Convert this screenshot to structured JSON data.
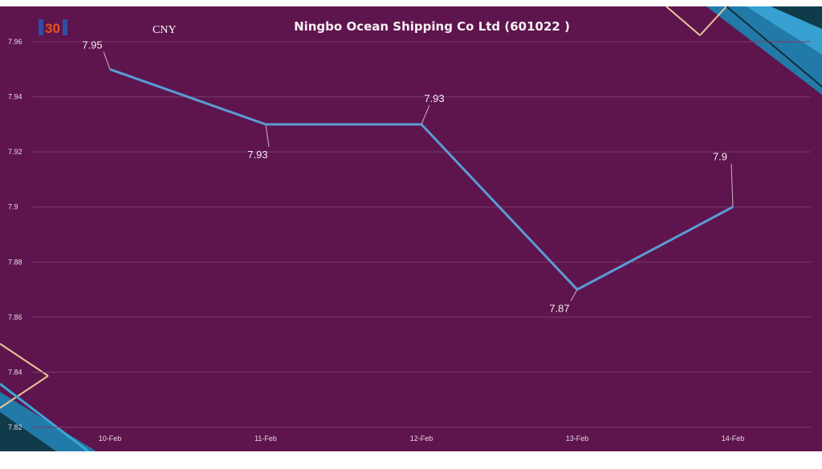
{
  "header": {
    "logo_text": "30",
    "currency": "CNY"
  },
  "chart_data": {
    "type": "line",
    "title": "Ningbo Ocean Shipping Co Ltd (601022 )",
    "xlabel": "",
    "ylabel": "",
    "categories": [
      "10-Feb",
      "11-Feb",
      "12-Feb",
      "13-Feb",
      "14-Feb"
    ],
    "series": [
      {
        "values": [
          7.95,
          7.93,
          7.93,
          7.87,
          7.9
        ],
        "labels": [
          "7.95",
          "7.93",
          "7.93",
          "7.87",
          "7.9"
        ]
      }
    ],
    "ylim": [
      7.82,
      7.96
    ],
    "yticks": [
      "7.82",
      "7.84",
      "7.86",
      "7.88",
      "7.9",
      "7.92",
      "7.94",
      "7.96"
    ],
    "grid": true,
    "colors": {
      "background": "#5e154d",
      "line": "#5b9bd5",
      "grid": "#7a3a6c",
      "accent_teal": "#2a8fb8",
      "accent_gold": "#d9a55a"
    }
  }
}
